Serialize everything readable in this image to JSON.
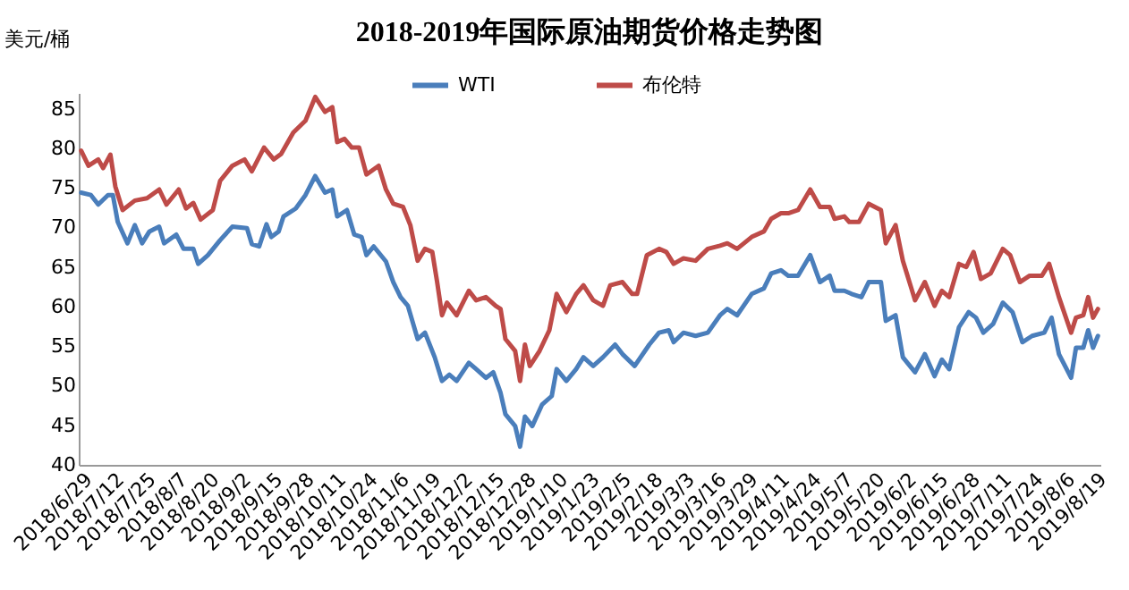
{
  "chart_data": {
    "type": "line",
    "title": "2018-2019年国际原油期货价格走势图",
    "ylabel": "美元/桶",
    "legend": "top",
    "grid": false,
    "line_style": "solid",
    "marker": "none",
    "ylim": [
      40,
      87
    ],
    "yticks": [
      40,
      45,
      50,
      55,
      60,
      65,
      70,
      75,
      80,
      85
    ],
    "xlim": [
      "2018-06-28",
      "2019-08-21"
    ],
    "xticks": [
      {
        "value": "2018-06-29",
        "label": "2018/6/29"
      },
      {
        "value": "2018-07-12",
        "label": "2018/7/12"
      },
      {
        "value": "2018-07-25",
        "label": "2018/7/25"
      },
      {
        "value": "2018-08-07",
        "label": "2018/8/7"
      },
      {
        "value": "2018-08-20",
        "label": "2018/8/20"
      },
      {
        "value": "2018-09-02",
        "label": "2018/9/2"
      },
      {
        "value": "2018-09-15",
        "label": "2018/9/15"
      },
      {
        "value": "2018-09-28",
        "label": "2018/9/28"
      },
      {
        "value": "2018-10-11",
        "label": "2018/10/11"
      },
      {
        "value": "2018-10-24",
        "label": "2018/10/24"
      },
      {
        "value": "2018-11-06",
        "label": "2018/11/6"
      },
      {
        "value": "2018-11-19",
        "label": "2018/11/19"
      },
      {
        "value": "2018-12-02",
        "label": "2018/12/2"
      },
      {
        "value": "2018-12-15",
        "label": "2018/12/15"
      },
      {
        "value": "2018-12-28",
        "label": "2018/12/28"
      },
      {
        "value": "2019-01-10",
        "label": "2019/1/10"
      },
      {
        "value": "2019-01-23",
        "label": "2019/1/23"
      },
      {
        "value": "2019-02-05",
        "label": "2019/2/5"
      },
      {
        "value": "2019-02-18",
        "label": "2019/2/18"
      },
      {
        "value": "2019-03-03",
        "label": "2019/3/3"
      },
      {
        "value": "2019-03-16",
        "label": "2019/3/16"
      },
      {
        "value": "2019-03-29",
        "label": "2019/3/29"
      },
      {
        "value": "2019-04-11",
        "label": "2019/4/11"
      },
      {
        "value": "2019-04-24",
        "label": "2019/4/24"
      },
      {
        "value": "2019-05-07",
        "label": "2019/5/7"
      },
      {
        "value": "2019-05-20",
        "label": "2019/5/20"
      },
      {
        "value": "2019-06-02",
        "label": "2019/6/2"
      },
      {
        "value": "2019-06-15",
        "label": "2019/6/15"
      },
      {
        "value": "2019-06-28",
        "label": "2019/6/28"
      },
      {
        "value": "2019-07-11",
        "label": "2019/7/11"
      },
      {
        "value": "2019-07-24",
        "label": "2019/7/24"
      },
      {
        "value": "2019-08-06",
        "label": "2019/8/6"
      },
      {
        "value": "2019-08-19",
        "label": "2019/8/19"
      }
    ],
    "series": [
      {
        "name": "WTI",
        "color": "#4a7ebb",
        "x": [
          "2018-06-29",
          "2018-07-03",
          "2018-07-06",
          "2018-07-10",
          "2018-07-12",
          "2018-07-14",
          "2018-07-18",
          "2018-07-21",
          "2018-07-24",
          "2018-07-27",
          "2018-07-31",
          "2018-08-02",
          "2018-08-07",
          "2018-08-10",
          "2018-08-14",
          "2018-08-16",
          "2018-08-20",
          "2018-08-25",
          "2018-08-30",
          "2018-09-05",
          "2018-09-07",
          "2018-09-10",
          "2018-09-13",
          "2018-09-15",
          "2018-09-18",
          "2018-09-20",
          "2018-09-25",
          "2018-09-29",
          "2018-10-03",
          "2018-10-07",
          "2018-10-10",
          "2018-10-12",
          "2018-10-16",
          "2018-10-19",
          "2018-10-22",
          "2018-10-24",
          "2018-10-27",
          "2018-11-01",
          "2018-11-04",
          "2018-11-07",
          "2018-11-10",
          "2018-11-14",
          "2018-11-17",
          "2018-11-21",
          "2018-11-24",
          "2018-11-27",
          "2018-11-30",
          "2018-12-05",
          "2018-12-08",
          "2018-12-12",
          "2018-12-15",
          "2018-12-18",
          "2018-12-20",
          "2018-12-24",
          "2018-12-26",
          "2018-12-28",
          "2018-12-31",
          "2019-01-04",
          "2019-01-08",
          "2019-01-10",
          "2019-01-14",
          "2019-01-18",
          "2019-01-21",
          "2019-01-25",
          "2019-01-29",
          "2019-02-03",
          "2019-02-06",
          "2019-02-11",
          "2019-02-17",
          "2019-02-21",
          "2019-02-25",
          "2019-02-27",
          "2019-03-03",
          "2019-03-08",
          "2019-03-13",
          "2019-03-18",
          "2019-03-21",
          "2019-03-25",
          "2019-03-31",
          "2019-04-05",
          "2019-04-08",
          "2019-04-12",
          "2019-04-15",
          "2019-04-19",
          "2019-04-24",
          "2019-04-28",
          "2019-05-02",
          "2019-05-04",
          "2019-05-08",
          "2019-05-11",
          "2019-05-15",
          "2019-05-18",
          "2019-05-23",
          "2019-05-25",
          "2019-05-29",
          "2019-06-01",
          "2019-06-06",
          "2019-06-10",
          "2019-06-14",
          "2019-06-17",
          "2019-06-20",
          "2019-06-24",
          "2019-06-28",
          "2019-07-01",
          "2019-07-04",
          "2019-07-08",
          "2019-07-12",
          "2019-07-16",
          "2019-07-20",
          "2019-07-24",
          "2019-07-29",
          "2019-08-01",
          "2019-08-04",
          "2019-08-09",
          "2019-08-11",
          "2019-08-14",
          "2019-08-16",
          "2019-08-18",
          "2019-08-20"
        ],
        "values": [
          74.4,
          74.1,
          72.9,
          74.1,
          74.1,
          70.7,
          68.0,
          70.3,
          68.0,
          69.5,
          70.1,
          68.0,
          69.1,
          67.3,
          67.3,
          65.4,
          66.5,
          68.4,
          70.1,
          69.9,
          67.9,
          67.6,
          70.4,
          68.8,
          69.5,
          71.4,
          72.4,
          74.1,
          76.5,
          74.4,
          74.8,
          71.4,
          72.2,
          69.1,
          68.8,
          66.5,
          67.6,
          65.7,
          63.1,
          61.2,
          60.1,
          55.9,
          56.7,
          53.6,
          50.6,
          51.4,
          50.6,
          52.9,
          52.1,
          51.0,
          51.7,
          49.1,
          46.4,
          44.9,
          42.3,
          46.1,
          44.9,
          47.6,
          48.7,
          52.1,
          50.6,
          52.1,
          53.6,
          52.5,
          53.6,
          55.2,
          54.0,
          52.5,
          55.2,
          56.7,
          57.0,
          55.5,
          56.7,
          56.3,
          56.7,
          58.9,
          59.7,
          58.9,
          61.6,
          62.3,
          64.2,
          64.6,
          63.9,
          63.9,
          66.5,
          63.1,
          63.9,
          62.0,
          62.0,
          61.6,
          61.2,
          63.1,
          63.1,
          58.2,
          58.9,
          53.6,
          51.7,
          54.0,
          51.2,
          53.3,
          52.1,
          57.4,
          59.3,
          58.6,
          56.7,
          57.8,
          60.5,
          59.3,
          55.5,
          56.3,
          56.7,
          58.6,
          54.0,
          51.0,
          54.8,
          54.8,
          57.0,
          54.8,
          56.3
        ]
      },
      {
        "name": "布伦特",
        "color": "#be4b48",
        "x": [
          "2018-06-29",
          "2018-07-02",
          "2018-07-06",
          "2018-07-08",
          "2018-07-11",
          "2018-07-13",
          "2018-07-16",
          "2018-07-21",
          "2018-07-26",
          "2018-07-31",
          "2018-08-03",
          "2018-08-08",
          "2018-08-11",
          "2018-08-14",
          "2018-08-17",
          "2018-08-22",
          "2018-08-25",
          "2018-08-30",
          "2018-09-04",
          "2018-09-07",
          "2018-09-12",
          "2018-09-16",
          "2018-09-19",
          "2018-09-24",
          "2018-09-29",
          "2018-10-03",
          "2018-10-07",
          "2018-10-10",
          "2018-10-12",
          "2018-10-15",
          "2018-10-18",
          "2018-10-21",
          "2018-10-24",
          "2018-10-29",
          "2018-11-01",
          "2018-11-04",
          "2018-11-08",
          "2018-11-11",
          "2018-11-14",
          "2018-11-17",
          "2018-11-20",
          "2018-11-22",
          "2018-11-24",
          "2018-11-26",
          "2018-11-30",
          "2018-12-05",
          "2018-12-08",
          "2018-12-12",
          "2018-12-16",
          "2018-12-18",
          "2018-12-20",
          "2018-12-24",
          "2018-12-26",
          "2018-12-28",
          "2018-12-30",
          "2019-01-03",
          "2019-01-07",
          "2019-01-10",
          "2019-01-14",
          "2019-01-18",
          "2019-01-21",
          "2019-01-25",
          "2019-01-29",
          "2019-02-01",
          "2019-02-06",
          "2019-02-10",
          "2019-02-12",
          "2019-02-16",
          "2019-02-21",
          "2019-02-24",
          "2019-02-27",
          "2019-03-03",
          "2019-03-08",
          "2019-03-13",
          "2019-03-18",
          "2019-03-21",
          "2019-03-25",
          "2019-03-31",
          "2019-04-05",
          "2019-04-08",
          "2019-04-12",
          "2019-04-15",
          "2019-04-19",
          "2019-04-24",
          "2019-04-28",
          "2019-05-02",
          "2019-05-04",
          "2019-05-08",
          "2019-05-10",
          "2019-05-14",
          "2019-05-18",
          "2019-05-23",
          "2019-05-25",
          "2019-05-29",
          "2019-06-01",
          "2019-06-06",
          "2019-06-10",
          "2019-06-14",
          "2019-06-17",
          "2019-06-20",
          "2019-06-24",
          "2019-06-27",
          "2019-06-30",
          "2019-07-03",
          "2019-07-07",
          "2019-07-12",
          "2019-07-15",
          "2019-07-19",
          "2019-07-23",
          "2019-07-28",
          "2019-07-31",
          "2019-08-04",
          "2019-08-09",
          "2019-08-11",
          "2019-08-14",
          "2019-08-16",
          "2019-08-18",
          "2019-08-20"
        ],
        "values": [
          79.7,
          77.8,
          78.6,
          77.5,
          79.2,
          75.2,
          72.2,
          73.4,
          73.7,
          74.8,
          72.9,
          74.8,
          72.4,
          73.1,
          71.0,
          72.2,
          75.9,
          77.8,
          78.6,
          77.1,
          80.1,
          78.6,
          79.3,
          82.0,
          83.5,
          86.5,
          84.6,
          85.2,
          80.8,
          81.2,
          80.1,
          80.1,
          76.7,
          77.8,
          74.8,
          73.0,
          72.6,
          70.3,
          65.8,
          67.3,
          66.9,
          63.1,
          58.9,
          60.5,
          58.9,
          62.0,
          60.8,
          61.2,
          60.1,
          59.7,
          55.9,
          54.4,
          50.6,
          55.2,
          52.5,
          54.4,
          57.0,
          61.6,
          59.3,
          61.6,
          62.7,
          60.8,
          60.1,
          62.7,
          63.1,
          61.6,
          61.6,
          66.5,
          67.3,
          66.9,
          65.4,
          66.1,
          65.8,
          67.3,
          67.7,
          68.0,
          67.3,
          68.8,
          69.5,
          71.1,
          71.8,
          71.8,
          72.2,
          74.8,
          72.6,
          72.6,
          71.1,
          71.4,
          70.7,
          70.7,
          73.0,
          72.2,
          68.0,
          70.3,
          65.8,
          60.8,
          63.1,
          60.1,
          62.0,
          61.2,
          65.4,
          65.0,
          66.9,
          63.5,
          64.2,
          67.3,
          66.5,
          63.1,
          63.9,
          63.9,
          65.4,
          61.2,
          56.7,
          58.6,
          58.9,
          61.2,
          58.6,
          59.7
        ]
      }
    ]
  }
}
